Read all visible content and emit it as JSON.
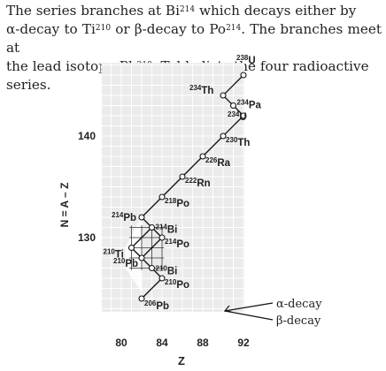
{
  "description": {
    "lines": [
      {
        "parts": [
          {
            "t": "The series branches at Bi"
          },
          {
            "t": "214",
            "sup": true
          },
          {
            "t": " which decays either by"
          }
        ]
      },
      {
        "parts": [
          {
            "t": "α-decay to Ti"
          },
          {
            "t": "210",
            "sup": true
          },
          {
            "t": " or β-decay to Po"
          },
          {
            "t": "214",
            "sup": true
          },
          {
            "t": ". The branches meet at"
          }
        ]
      },
      {
        "parts": [
          {
            "t": "the lead isotope Pb"
          },
          {
            "t": "210",
            "sup": true
          },
          {
            "t": ". Table lists the four radioactive series."
          }
        ]
      }
    ]
  },
  "chart_data": {
    "type": "scatter",
    "xlabel": "Z",
    "ylabel": "N = A – Z",
    "x_ticks": [
      80,
      84,
      88,
      92
    ],
    "y_ticks": [
      130,
      140
    ],
    "grid": true,
    "legend": {
      "placement": "bottom-right",
      "entries": [
        {
          "label": "α-decay",
          "kind": "alpha"
        },
        {
          "label": "β-decay",
          "kind": "beta"
        }
      ]
    },
    "nuclides": [
      {
        "mass": "238",
        "symbol": "U",
        "z": 92,
        "n": 146
      },
      {
        "mass": "234",
        "symbol": "Th",
        "z": 90,
        "n": 144
      },
      {
        "mass": "234",
        "symbol": "Pa",
        "z": 91,
        "n": 143
      },
      {
        "mass": "234",
        "symbol": "U",
        "z": 92,
        "n": 142
      },
      {
        "mass": "230",
        "symbol": "Th",
        "z": 90,
        "n": 140
      },
      {
        "mass": "226",
        "symbol": "Ra",
        "z": 88,
        "n": 138
      },
      {
        "mass": "222",
        "symbol": "Rn",
        "z": 86,
        "n": 136
      },
      {
        "mass": "218",
        "symbol": "Po",
        "z": 84,
        "n": 134
      },
      {
        "mass": "214",
        "symbol": "Pb",
        "z": 82,
        "n": 132
      },
      {
        "mass": "214",
        "symbol": "Bi",
        "z": 83,
        "n": 131
      },
      {
        "mass": "214",
        "symbol": "Po",
        "z": 84,
        "n": 130
      },
      {
        "mass": "210",
        "symbol": "Ti",
        "z": 81,
        "n": 129
      },
      {
        "mass": "210",
        "symbol": "Pb",
        "z": 82,
        "n": 128
      },
      {
        "mass": "210",
        "symbol": "Bi",
        "z": 83,
        "n": 127
      },
      {
        "mass": "210",
        "symbol": "Po",
        "z": 84,
        "n": 126
      },
      {
        "mass": "206",
        "symbol": "Pb",
        "z": 82,
        "n": 124
      }
    ],
    "decays": [
      {
        "from": 0,
        "to": 1,
        "kind": "alpha"
      },
      {
        "from": 1,
        "to": 2,
        "kind": "beta"
      },
      {
        "from": 2,
        "to": 3,
        "kind": "beta"
      },
      {
        "from": 3,
        "to": 4,
        "kind": "alpha"
      },
      {
        "from": 4,
        "to": 5,
        "kind": "alpha"
      },
      {
        "from": 5,
        "to": 6,
        "kind": "alpha"
      },
      {
        "from": 6,
        "to": 7,
        "kind": "alpha"
      },
      {
        "from": 7,
        "to": 8,
        "kind": "alpha"
      },
      {
        "from": 8,
        "to": 9,
        "kind": "beta"
      },
      {
        "from": 9,
        "to": 10,
        "kind": "beta"
      },
      {
        "from": 9,
        "to": 11,
        "kind": "alpha"
      },
      {
        "from": 11,
        "to": 12,
        "kind": "beta"
      },
      {
        "from": 10,
        "to": 12,
        "kind": "alpha"
      },
      {
        "from": 12,
        "to": 13,
        "kind": "beta"
      },
      {
        "from": 13,
        "to": 14,
        "kind": "beta"
      },
      {
        "from": 14,
        "to": 15,
        "kind": "alpha"
      }
    ]
  }
}
